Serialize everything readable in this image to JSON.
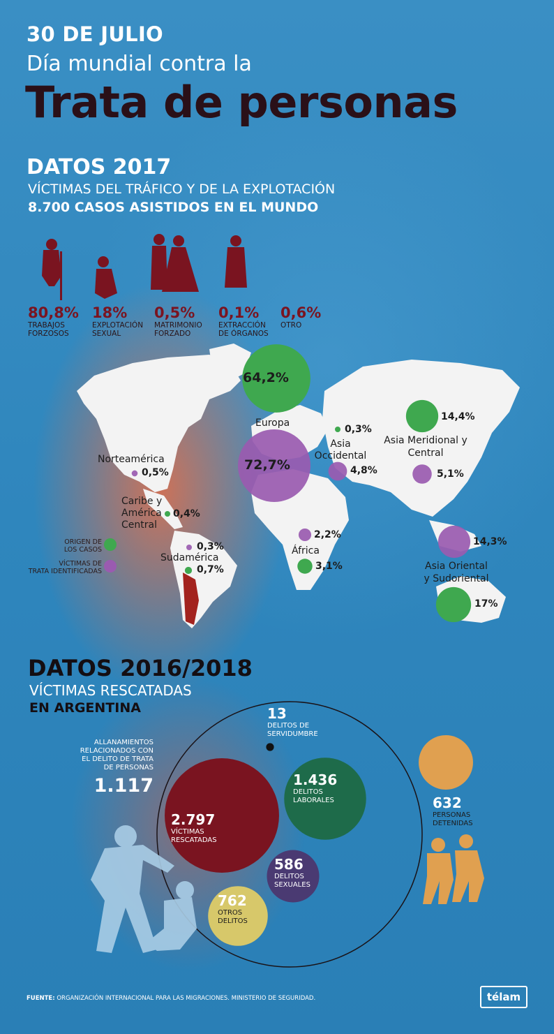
{
  "header": {
    "date": "30 DE JULIO",
    "subtitle": "Día mundial contra la",
    "title": "Trata de personas"
  },
  "section_2017": {
    "title": "DATOS 2017",
    "subtitle": "VÍCTIMAS DEL TRÁFICO Y DE LA EXPLOTACIÓN",
    "cases": "8.700 CASOS ASISTIDOS EN EL MUNDO",
    "exploitation": [
      {
        "value": "80,8%",
        "label1": "TRABAJOS",
        "label2": "FORZOSOS",
        "icon": "forced-labor-icon"
      },
      {
        "value": "18%",
        "label1": "EXPLOTACIÓN",
        "label2": "SEXUAL",
        "icon": "sexual-exploitation-icon"
      },
      {
        "value": "0,5%",
        "label1": "MATRIMONIO",
        "label2": "FORZADO",
        "icon": "forced-marriage-icon"
      },
      {
        "value": "0,1%",
        "label1": "EXTRACCIÓN",
        "label2": "DE ÓRGANOS",
        "icon": "organ-extraction-icon"
      },
      {
        "value": "0,6%",
        "label1": "OTRO",
        "label2": "",
        "icon": ""
      }
    ],
    "legend": {
      "origin_line1": "ORIGEN DE",
      "origin_line2": "LOS CASOS",
      "victims_line1": "VÍCTIMAS DE",
      "victims_line2": "TRATA IDENTIFICADAS"
    }
  },
  "chart_data": {
    "type": "bubble-map",
    "series": [
      {
        "name": "ORIGEN DE LOS CASOS",
        "color": "#3fa84f"
      },
      {
        "name": "VÍCTIMAS DE TRATA IDENTIFICADAS",
        "color": "#9a5bb0"
      }
    ],
    "regions": [
      {
        "region": "Europa",
        "origen": 64.2,
        "victimas": 72.7,
        "origen_label": "64,2%",
        "victimas_label": "72,7%"
      },
      {
        "region": "Norteamérica",
        "origen": null,
        "victimas": 0.5,
        "origen_label": "",
        "victimas_label": "0,5%"
      },
      {
        "region": "Caribe y América Central",
        "origen": 0.4,
        "victimas": null,
        "origen_label": "0,4%",
        "victimas_label": ""
      },
      {
        "region": "Sudamérica",
        "origen": 0.7,
        "victimas": 0.3,
        "origen_label": "0,7%",
        "victimas_label": "0,3%"
      },
      {
        "region": "África",
        "origen": 3.1,
        "victimas": 2.2,
        "origen_label": "3,1%",
        "victimas_label": "2,2%"
      },
      {
        "region": "Asia Occidental",
        "origen": 0.3,
        "victimas": 4.8,
        "origen_label": "0,3%",
        "victimas_label": "4,8%"
      },
      {
        "region": "Asia Meridional y Central",
        "origen": 14.4,
        "victimas": 5.1,
        "origen_label": "14,4%",
        "victimas_label": "5,1%"
      },
      {
        "region": "Asia Oriental y Sudoriental",
        "origen": 17,
        "victimas": 14.3,
        "origen_label": "17%",
        "victimas_label": "14,3%"
      }
    ]
  },
  "section_2016_2018": {
    "title": "DATOS 2016/2018",
    "subtitle": "VÍCTIMAS RESCATADAS",
    "subtitle2": "EN ARGENTINA",
    "raids_label1": "ALLANAMIENTOS",
    "raids_label2": "RELACIONADOS CON",
    "raids_label3": "EL DELITO DE TRATA",
    "raids_label4": "DE PERSONAS",
    "raids_value": "1.117",
    "circles": [
      {
        "key": "victimas",
        "value": 2797,
        "value_label": "2.797",
        "label1": "VÍCTIMAS",
        "label2": "RESCATADAS",
        "color": "#7a1420"
      },
      {
        "key": "laborales",
        "value": 1436,
        "value_label": "1.436",
        "label1": "DELITOS",
        "label2": "LABORALES",
        "color": "#1e6b4a"
      },
      {
        "key": "otros",
        "value": 762,
        "value_label": "762",
        "label1": "OTROS",
        "label2": "DELITOS",
        "color": "#d7c86a"
      },
      {
        "key": "sexuales",
        "value": 586,
        "value_label": "586",
        "label1": "DELITOS",
        "label2": "SEXUALES",
        "color": "#4a3a72"
      },
      {
        "key": "servidumbre",
        "value": 13,
        "value_label": "13",
        "label1": "DELITOS DE",
        "label2": "SERVIDUMBRE",
        "color": "#111111"
      },
      {
        "key": "detenidas",
        "value": 632,
        "value_label": "632",
        "label1": "PERSONAS",
        "label2": "DETENIDAS",
        "color": "#e0a050"
      }
    ]
  },
  "footer": {
    "source_bold": "FUENTE:",
    "source_text": "ORGANIZACIÓN INTERNACIONAL PARA LAS MIGRACIONES. MINISTERIO DE SEGURIDAD.",
    "logo": "télam"
  }
}
